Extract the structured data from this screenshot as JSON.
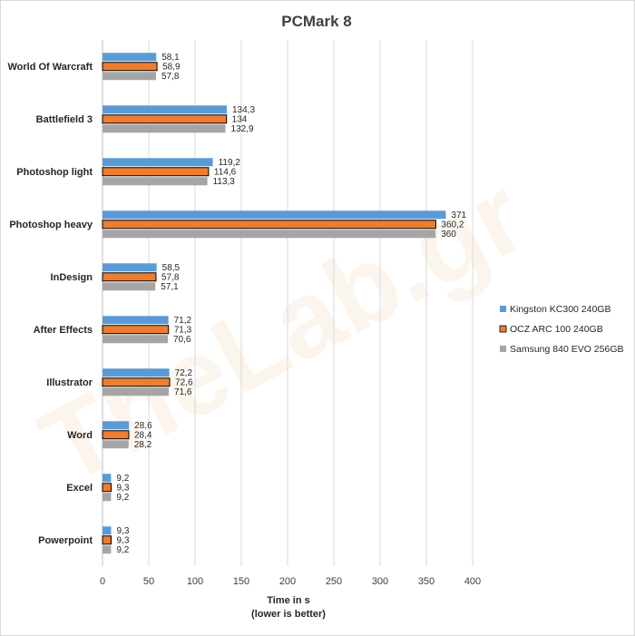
{
  "chart_data": {
    "type": "bar",
    "orientation": "horizontal",
    "title": "PCMark 8",
    "xlabel": [
      "Time in s",
      "(lower is better)"
    ],
    "ylabel": "",
    "xlim": [
      0,
      400
    ],
    "xticks": [
      0,
      50,
      100,
      150,
      200,
      250,
      300,
      350,
      400
    ],
    "grid": true,
    "legend_position": "right",
    "categories": [
      "World Of Warcraft",
      "Battlefield 3",
      "Photoshop light",
      "Photoshop heavy",
      "InDesign",
      "After Effects",
      "Illustrator",
      "Word",
      "Excel",
      "Powerpoint"
    ],
    "series": [
      {
        "name": "Kingston KC300 240GB",
        "color": "#5b9bd5",
        "outline": false,
        "values": [
          58.1,
          134.3,
          119.2,
          371,
          58.5,
          71.2,
          72.2,
          28.6,
          9.2,
          9.3
        ],
        "labels": [
          "58,1",
          "134,3",
          "119,2",
          "371",
          "58,5",
          "71,2",
          "72,2",
          "28,6",
          "9,2",
          "9,3"
        ]
      },
      {
        "name": "OCZ ARC 100 240GB",
        "color": "#ed7d31",
        "outline": true,
        "values": [
          58.9,
          134,
          114.6,
          360.2,
          57.8,
          71.3,
          72.6,
          28.4,
          9.3,
          9.3
        ],
        "labels": [
          "58,9",
          "134",
          "114,6",
          "360,2",
          "57,8",
          "71,3",
          "72,6",
          "28,4",
          "9,3",
          "9,3"
        ]
      },
      {
        "name": "Samsung 840 EVO 256GB",
        "color": "#a5a5a5",
        "outline": false,
        "values": [
          57.8,
          132.9,
          113.3,
          360,
          57.1,
          70.6,
          71.6,
          28.2,
          9.2,
          9.2
        ],
        "labels": [
          "57,8",
          "132,9",
          "113,3",
          "360",
          "57,1",
          "70,6",
          "71,6",
          "28,2",
          "9,2",
          "9,2"
        ]
      }
    ]
  }
}
